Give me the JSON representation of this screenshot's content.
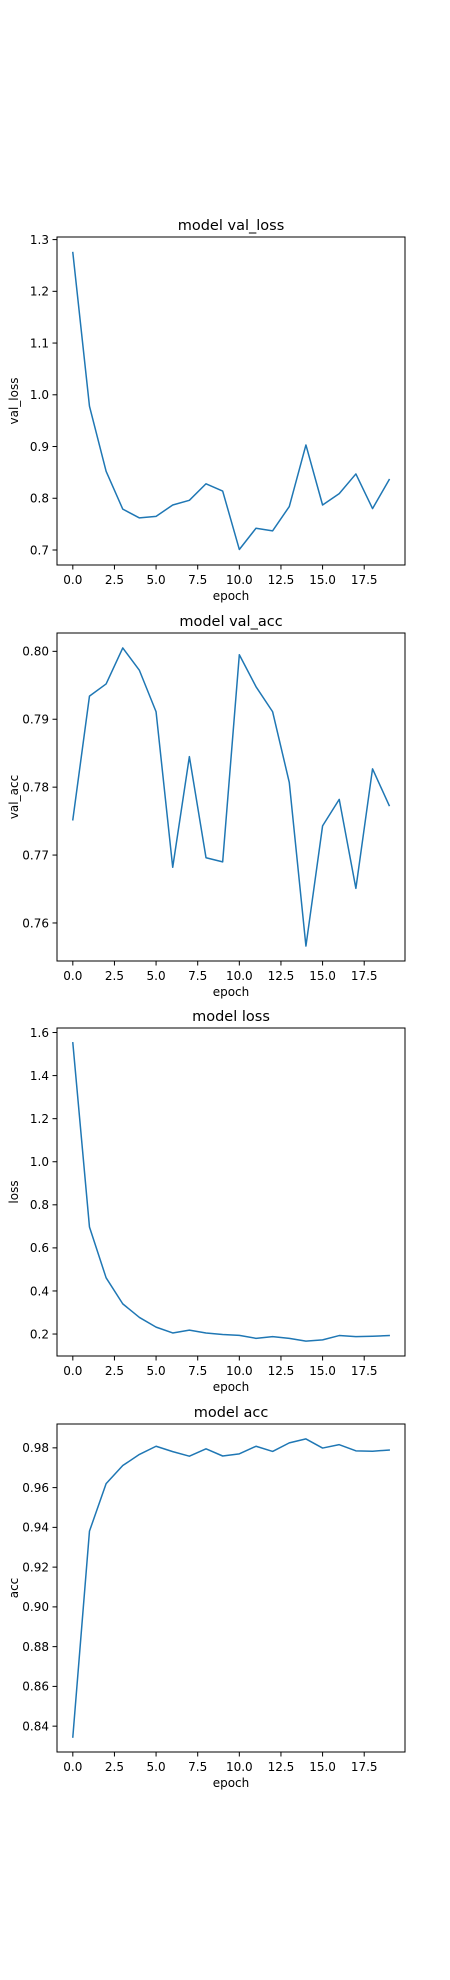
{
  "line_color": "#1f77b4",
  "chart_data": [
    {
      "type": "line",
      "title": "model val_loss",
      "xlabel": "epoch",
      "ylabel": "val_loss",
      "x": [
        0,
        1,
        2,
        3,
        4,
        5,
        6,
        7,
        8,
        9,
        10,
        11,
        12,
        13,
        14,
        15,
        16,
        17,
        18,
        19
      ],
      "series": [
        {
          "values": [
            1.275,
            0.978,
            0.852,
            0.779,
            0.762,
            0.765,
            0.787,
            0.796,
            0.828,
            0.814,
            0.701,
            0.742,
            0.737,
            0.784,
            0.903,
            0.787,
            0.809,
            0.847,
            0.78,
            0.836
          ]
        }
      ],
      "xlim": [
        -0.95,
        19.95
      ],
      "ylim": [
        0.671,
        1.305
      ],
      "xticks": [
        0,
        2.5,
        5,
        7.5,
        10,
        12.5,
        15,
        17.5
      ],
      "xtick_labels": [
        "0.0",
        "2.5",
        "5.0",
        "7.5",
        "10.0",
        "12.5",
        "15.0",
        "17.5"
      ],
      "yticks": [
        0.7,
        0.8,
        0.9,
        1.0,
        1.1,
        1.2,
        1.3
      ],
      "ytick_labels": [
        "0.7",
        "0.8",
        "0.9",
        "1.0",
        "1.1",
        "1.2",
        "1.3"
      ],
      "grid": false
    },
    {
      "type": "line",
      "title": "model val_acc",
      "xlabel": "epoch",
      "ylabel": "val_acc",
      "x": [
        0,
        1,
        2,
        3,
        4,
        5,
        6,
        7,
        8,
        9,
        10,
        11,
        12,
        13,
        14,
        15,
        16,
        17,
        18,
        19
      ],
      "series": [
        {
          "values": [
            0.7752,
            0.7934,
            0.7952,
            0.8005,
            0.7972,
            0.7911,
            0.7682,
            0.7845,
            0.7696,
            0.769,
            0.7995,
            0.7948,
            0.7911,
            0.7807,
            0.7566,
            0.7743,
            0.7782,
            0.7651,
            0.7827,
            0.7773
          ]
        }
      ],
      "xlim": [
        -0.95,
        19.95
      ],
      "ylim": [
        0.7544,
        0.8027
      ],
      "xticks": [
        0,
        2.5,
        5,
        7.5,
        10,
        12.5,
        15,
        17.5
      ],
      "xtick_labels": [
        "0.0",
        "2.5",
        "5.0",
        "7.5",
        "10.0",
        "12.5",
        "15.0",
        "17.5"
      ],
      "yticks": [
        0.76,
        0.77,
        0.78,
        0.79,
        0.8
      ],
      "ytick_labels": [
        "0.76",
        "0.77",
        "0.78",
        "0.79",
        "0.80"
      ],
      "grid": false
    },
    {
      "type": "line",
      "title": "model loss",
      "xlabel": "epoch",
      "ylabel": "loss",
      "x": [
        0,
        1,
        2,
        3,
        4,
        5,
        6,
        7,
        8,
        9,
        10,
        11,
        12,
        13,
        14,
        15,
        16,
        17,
        18,
        19
      ],
      "series": [
        {
          "values": [
            1.552,
            0.697,
            0.461,
            0.34,
            0.277,
            0.232,
            0.205,
            0.218,
            0.205,
            0.198,
            0.194,
            0.18,
            0.188,
            0.18,
            0.167,
            0.173,
            0.193,
            0.188,
            0.19,
            0.193
          ]
        }
      ],
      "xlim": [
        -0.95,
        19.95
      ],
      "ylim": [
        0.098,
        1.621
      ],
      "xticks": [
        0,
        2.5,
        5,
        7.5,
        10,
        12.5,
        15,
        17.5
      ],
      "xtick_labels": [
        "0.0",
        "2.5",
        "5.0",
        "7.5",
        "10.0",
        "12.5",
        "15.0",
        "17.5"
      ],
      "yticks": [
        0.2,
        0.4,
        0.6,
        0.8,
        1.0,
        1.2,
        1.4,
        1.6
      ],
      "ytick_labels": [
        "0.2",
        "0.4",
        "0.6",
        "0.8",
        "1.0",
        "1.2",
        "1.4",
        "1.6"
      ],
      "grid": false
    },
    {
      "type": "line",
      "title": "model acc",
      "xlabel": "epoch",
      "ylabel": "acc",
      "x": [
        0,
        1,
        2,
        3,
        4,
        5,
        6,
        7,
        8,
        9,
        10,
        11,
        12,
        13,
        14,
        15,
        16,
        17,
        18,
        19
      ],
      "series": [
        {
          "values": [
            0.8345,
            0.9381,
            0.962,
            0.9711,
            0.9767,
            0.9808,
            0.9781,
            0.9758,
            0.9795,
            0.9759,
            0.977,
            0.9808,
            0.9782,
            0.9825,
            0.9845,
            0.9799,
            0.9816,
            0.9785,
            0.9783,
            0.9789
          ]
        }
      ],
      "xlim": [
        -0.95,
        19.95
      ],
      "ylim": [
        0.827,
        0.992
      ],
      "xticks": [
        0,
        2.5,
        5,
        7.5,
        10,
        12.5,
        15,
        17.5
      ],
      "xtick_labels": [
        "0.0",
        "2.5",
        "5.0",
        "7.5",
        "10.0",
        "12.5",
        "15.0",
        "17.5"
      ],
      "yticks": [
        0.84,
        0.86,
        0.88,
        0.9,
        0.92,
        0.94,
        0.96,
        0.98
      ],
      "ytick_labels": [
        "0.84",
        "0.86",
        "0.88",
        "0.90",
        "0.92",
        "0.94",
        "0.96",
        "0.98"
      ],
      "grid": false
    }
  ]
}
